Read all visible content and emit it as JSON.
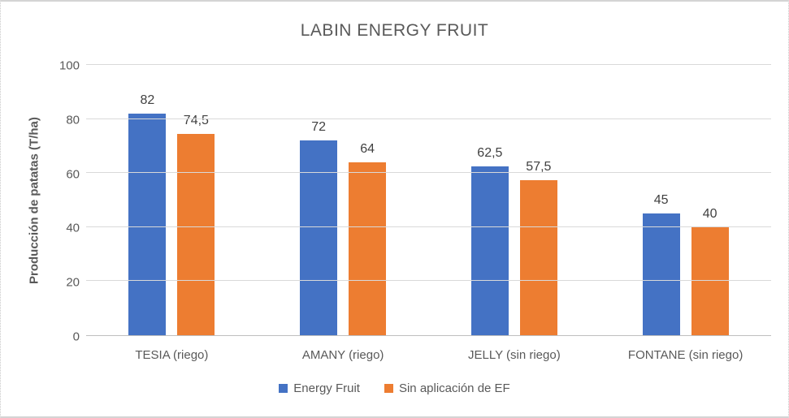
{
  "chart_data": {
    "type": "bar",
    "title": "LABIN ENERGY FRUIT",
    "xlabel": "",
    "ylabel": "Producción de patatas (T/ha)",
    "ylim": [
      0,
      100
    ],
    "yticks": [
      0,
      20,
      40,
      60,
      80,
      100
    ],
    "grid": true,
    "legend_position": "bottom",
    "categories": [
      "TESIA (riego)",
      "AMANY (riego)",
      "JELLY (sin riego)",
      "FONTANE (sin riego)"
    ],
    "series": [
      {
        "name": "Energy Fruit",
        "color": "#4472C4",
        "values": [
          82,
          72,
          62.5,
          45
        ],
        "labels": [
          "82",
          "72",
          "62,5",
          "45"
        ]
      },
      {
        "name": "Sin aplicación de EF",
        "color": "#ED7D31",
        "values": [
          74.5,
          64,
          57.5,
          40
        ],
        "labels": [
          "74,5",
          "64",
          "57,5",
          "40"
        ]
      }
    ],
    "colors": {
      "title_text": "#595959",
      "axis_text": "#595959",
      "data_label_text": "#404040",
      "gridline": "#D9D9D9",
      "axis_line": "#BFBFBF"
    }
  }
}
